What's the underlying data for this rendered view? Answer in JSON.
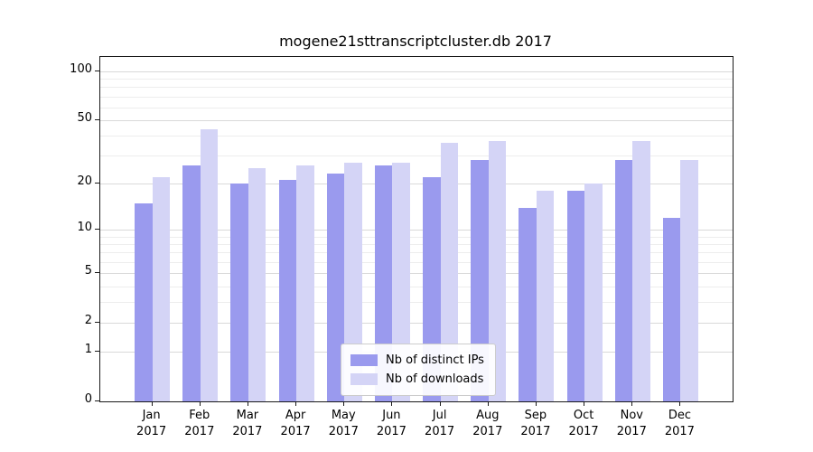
{
  "chart_data": {
    "type": "bar",
    "title": "mogene21sttranscriptcluster.db 2017",
    "categories": [
      "Jan",
      "Feb",
      "Mar",
      "Apr",
      "May",
      "Jun",
      "Jul",
      "Aug",
      "Sep",
      "Oct",
      "Nov",
      "Dec"
    ],
    "year_label": "2017",
    "series": [
      {
        "name": "Nb of distinct IPs",
        "color": "#9a9aee",
        "values": [
          15,
          26,
          20,
          21,
          23,
          26,
          22,
          28,
          14,
          18,
          28,
          12
        ]
      },
      {
        "name": "Nb of downloads",
        "color": "#d4d4f6",
        "values": [
          22,
          44,
          25,
          26,
          27,
          27,
          36,
          37,
          18,
          20,
          37,
          28
        ]
      }
    ],
    "xlabel": "",
    "ylabel": "",
    "yscale": "log1p",
    "ylim": [
      0,
      122
    ],
    "yticks": [
      0,
      1,
      2,
      5,
      10,
      20,
      50,
      100
    ],
    "yminorticks": [
      3,
      4,
      6,
      7,
      8,
      9,
      30,
      40,
      60,
      70,
      80,
      90
    ],
    "grid": true,
    "legend_position": "bottom-center"
  }
}
